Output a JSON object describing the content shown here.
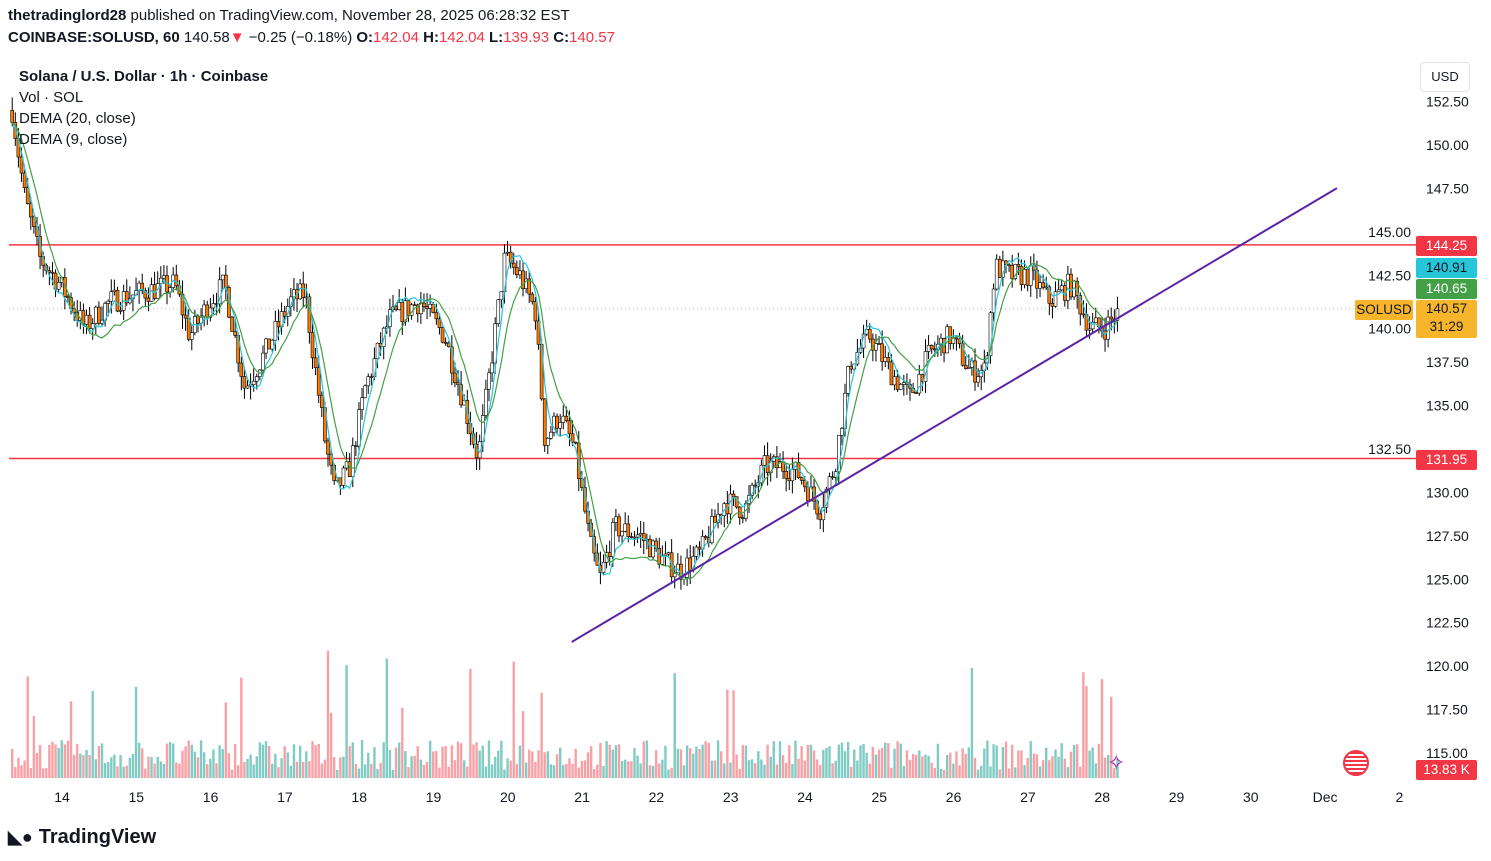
{
  "header": {
    "publisher": "thetradinglord28",
    "published_text": "published on TradingView.com, November 28, 2025 06:28:32 EST",
    "symbol": "COINBASE:SOLUSD, 60",
    "last": "140.58",
    "change": "−0.25 (−0.18%)",
    "o_label": "O:",
    "o": "142.04",
    "h_label": "H:",
    "h": "142.04",
    "l_label": "L:",
    "l": "139.93",
    "c_label": "C:",
    "c": "140.57"
  },
  "legend": {
    "title": "Solana / U.S. Dollar · 1h · Coinbase",
    "vol": "Vol · SOL",
    "dema20": "DEMA (20, close)",
    "dema9": "DEMA (9, close)"
  },
  "currency": "USD",
  "price_tags": {
    "resistance": "144.25",
    "dema_fast": "140.91",
    "dema_slow": "140.65",
    "symbol": "SOLUSD",
    "last": "140.57",
    "countdown": "31:29",
    "support": "131.95",
    "volume": "13.83 K"
  },
  "brand": "TradingView",
  "colors": {
    "up": "#ffffff",
    "down": "#ff7a00",
    "resistance": "#f23645",
    "trend": "#5b23a8",
    "dema_fast": "#26c6da",
    "dema_slow": "#43a047",
    "last": "#f7b52c",
    "vol_up": "#80cbc4",
    "vol_down": "#f7a1a6"
  },
  "chart_data": {
    "type": "candlestick",
    "title": "Solana / U.S. Dollar · 1h · Coinbase",
    "ylim": [
      113.5,
      154
    ],
    "y_ticks": [
      "152.50",
      "150.00",
      "147.50",
      "145.00",
      "142.50",
      "140.00",
      "137.50",
      "135.00",
      "132.50",
      "130.00",
      "127.50",
      "125.00",
      "122.50",
      "120.00",
      "117.50",
      "115.00"
    ],
    "x_ticks": [
      {
        "t": 14,
        "label": "14"
      },
      {
        "t": 15,
        "label": "15"
      },
      {
        "t": 16,
        "label": "16"
      },
      {
        "t": 17,
        "label": "17"
      },
      {
        "t": 18,
        "label": "18"
      },
      {
        "t": 19,
        "label": "19"
      },
      {
        "t": 20,
        "label": "20"
      },
      {
        "t": 21,
        "label": "21"
      },
      {
        "t": 22,
        "label": "22"
      },
      {
        "t": 23,
        "label": "23"
      },
      {
        "t": 24,
        "label": "24"
      },
      {
        "t": 25,
        "label": "25"
      },
      {
        "t": 26,
        "label": "26"
      },
      {
        "t": 27,
        "label": "27"
      },
      {
        "t": 28,
        "label": "28"
      },
      {
        "t": 29,
        "label": "29"
      },
      {
        "t": 30,
        "label": "30"
      },
      {
        "t": 31,
        "label": "Dec"
      },
      {
        "t": 32,
        "label": "2"
      }
    ],
    "price_path_day_close": [
      [
        13.33,
        152
      ],
      [
        13.5,
        147
      ],
      [
        13.7,
        143.5
      ],
      [
        13.97,
        142
      ],
      [
        14.31,
        139.5
      ],
      [
        14.65,
        141
      ],
      [
        15.05,
        141.5
      ],
      [
        15.52,
        142
      ],
      [
        15.72,
        139
      ],
      [
        15.99,
        141
      ],
      [
        16.19,
        142
      ],
      [
        16.46,
        136
      ],
      [
        16.73,
        138
      ],
      [
        17.07,
        141
      ],
      [
        17.27,
        141.5
      ],
      [
        17.54,
        133
      ],
      [
        17.67,
        130
      ],
      [
        17.88,
        131.5
      ],
      [
        18.08,
        136
      ],
      [
        18.41,
        140
      ],
      [
        18.82,
        141
      ],
      [
        19.15,
        139
      ],
      [
        19.42,
        135
      ],
      [
        19.6,
        132
      ],
      [
        19.76,
        137
      ],
      [
        19.96,
        143.5
      ],
      [
        20.16,
        142.5
      ],
      [
        20.37,
        140.5
      ],
      [
        20.5,
        133
      ],
      [
        20.7,
        134.5
      ],
      [
        20.9,
        132.5
      ],
      [
        21.11,
        127
      ],
      [
        21.24,
        125
      ],
      [
        21.44,
        128
      ],
      [
        21.78,
        127.5
      ],
      [
        22.12,
        126
      ],
      [
        22.32,
        125.5
      ],
      [
        22.59,
        126.5
      ],
      [
        22.92,
        129.5
      ],
      [
        23.19,
        129
      ],
      [
        23.46,
        131.5
      ],
      [
        23.73,
        131.5
      ],
      [
        23.93,
        131
      ],
      [
        24.2,
        129
      ],
      [
        24.4,
        131.5
      ],
      [
        24.61,
        137.5
      ],
      [
        24.87,
        139
      ],
      [
        25.14,
        137
      ],
      [
        25.41,
        135.5
      ],
      [
        25.68,
        138
      ],
      [
        25.95,
        139
      ],
      [
        26.22,
        137
      ],
      [
        26.42,
        137
      ],
      [
        26.56,
        143
      ],
      [
        26.76,
        142.5
      ],
      [
        27.03,
        142.5
      ],
      [
        27.3,
        141
      ],
      [
        27.57,
        142
      ],
      [
        27.84,
        139.5
      ],
      [
        28.04,
        139.5
      ],
      [
        28.24,
        140.57
      ]
    ],
    "horizontal_lines": [
      144.25,
      131.95
    ],
    "trendline": [
      [
        20.86,
        121.39
      ],
      [
        31.16,
        147.52
      ]
    ],
    "last_volume": "13.83K"
  }
}
